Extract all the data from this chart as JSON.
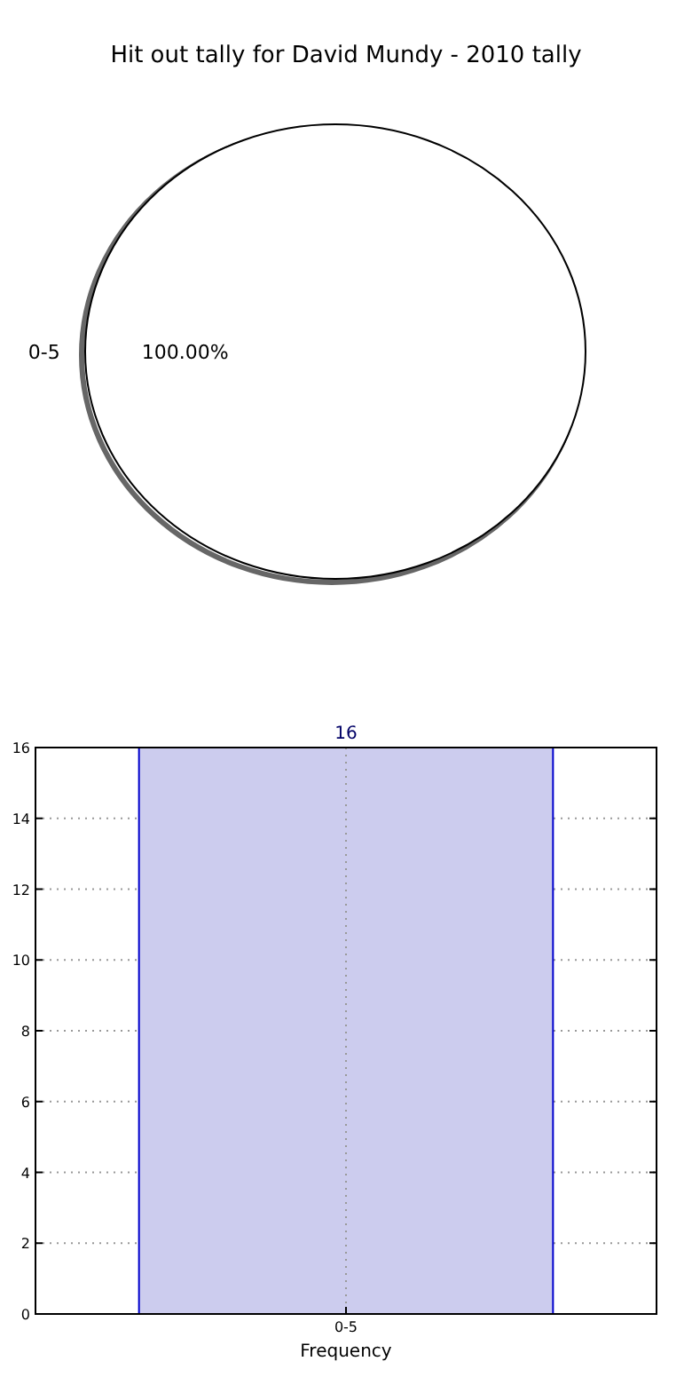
{
  "chart_data": [
    {
      "type": "pie",
      "title": "Hit out tally for David Mundy - 2010 tally",
      "categories": [
        "0-5"
      ],
      "values": [
        100
      ],
      "colors": [
        "#ffffff"
      ],
      "value_labels": [
        "100.00%"
      ]
    },
    {
      "type": "bar",
      "categories": [
        "0-5"
      ],
      "values": [
        16
      ],
      "color": "#ccccee",
      "xlabel": "Frequency",
      "ylim": [
        0,
        16
      ],
      "yticks": [
        0,
        2,
        4,
        6,
        8,
        10,
        12,
        14,
        16
      ],
      "grid": true,
      "data_labels": true
    }
  ]
}
